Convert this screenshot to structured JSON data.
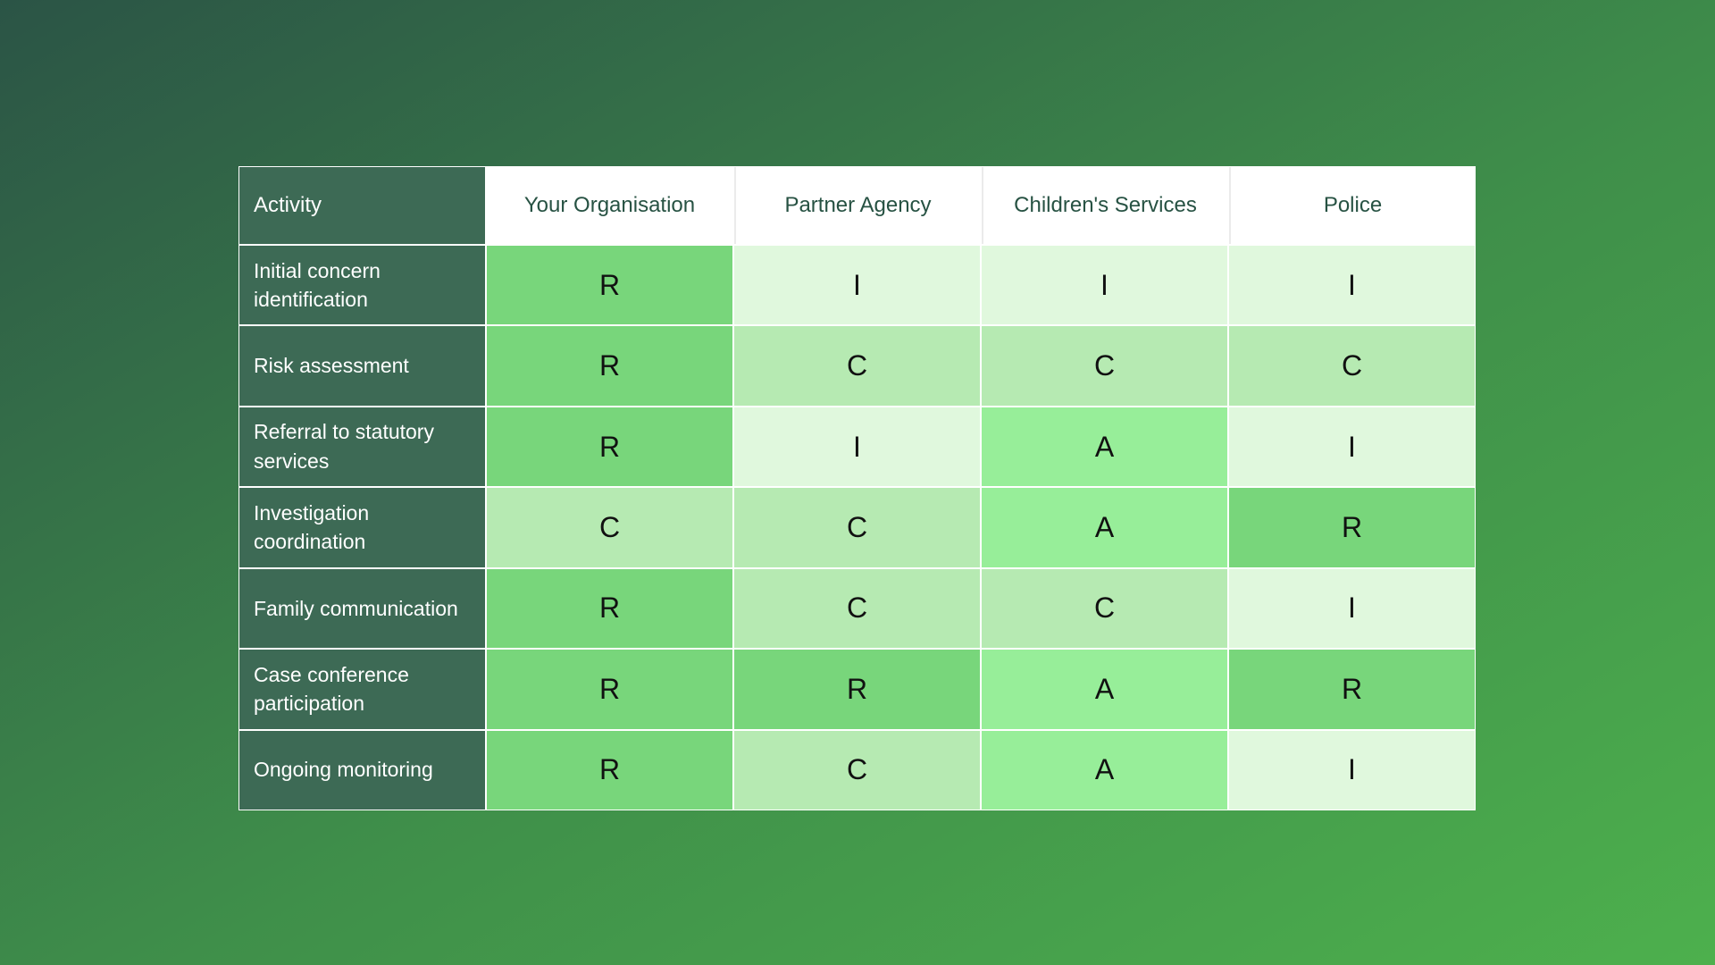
{
  "chart_data": {
    "type": "table",
    "columns": [
      "Activity",
      "Your Organisation",
      "Partner Agency",
      "Children's Services",
      "Police"
    ],
    "rows": [
      {
        "activity": "Initial concern identification",
        "values": [
          "R",
          "I",
          "I",
          "I"
        ]
      },
      {
        "activity": "Risk assessment",
        "values": [
          "R",
          "C",
          "C",
          "C"
        ]
      },
      {
        "activity": "Referral to statutory services",
        "values": [
          "R",
          "I",
          "A",
          "I"
        ]
      },
      {
        "activity": "Investigation coordination",
        "values": [
          "C",
          "C",
          "A",
          "R"
        ]
      },
      {
        "activity": "Family communication",
        "values": [
          "R",
          "C",
          "C",
          "I"
        ]
      },
      {
        "activity": "Case conference participation",
        "values": [
          "R",
          "R",
          "A",
          "R"
        ]
      },
      {
        "activity": "Ongoing monitoring",
        "values": [
          "R",
          "C",
          "A",
          "I"
        ]
      }
    ],
    "value_colors": {
      "R": "#78d67b",
      "A": "#97ee99",
      "C": "#b6eab2",
      "I": "#e0f8dd"
    }
  },
  "styles": {
    "background_top_left": "#2b5446",
    "background_mid": "#3f8f4a",
    "background_bottom_right": "#4db04d",
    "header_row_bg": "#ffffff",
    "header_text_color": "#275243",
    "activity_column_bg": "#3d6a55",
    "activity_text_color": "#ffffff",
    "cell_text_color": "#111111",
    "grid_line_color": "#ffffff"
  }
}
